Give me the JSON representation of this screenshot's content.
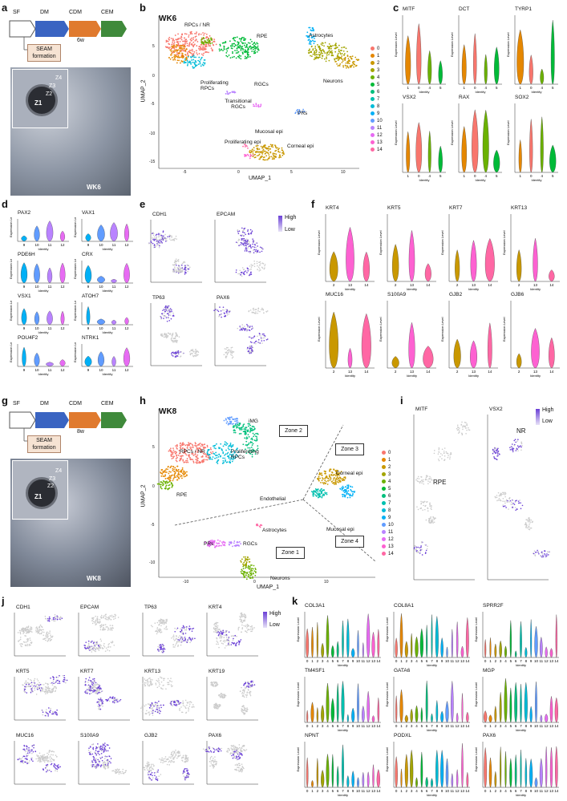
{
  "panels": {
    "a": {
      "label": "a",
      "timeline": [
        "SF",
        "DM",
        "CDM",
        "CEM"
      ],
      "duration": "6w",
      "box": "SEAM formation",
      "zones": [
        "Z1",
        "Z2",
        "Z3",
        "Z4"
      ],
      "photo_label": "WK6"
    },
    "b": {
      "label": "b",
      "title": "WK6",
      "xlabel": "UMAP_1",
      "ylabel": "UMAP_2",
      "xticks": [
        "-5",
        "0",
        "5",
        "10"
      ],
      "yticks": [
        "5",
        "0",
        "-5",
        "-10",
        "-15"
      ],
      "annotations": [
        "RPCs / NR",
        "RPE",
        "Astrocytes",
        "Proliferating RPCs",
        "Neurons",
        "RGCs",
        "Transitional RGCs",
        "PRs",
        "Mucosal epi",
        "Proliferating epi",
        "Corneal epi"
      ],
      "legend": [
        "0",
        "1",
        "2",
        "3",
        "4",
        "5",
        "6",
        "7",
        "8",
        "9",
        "10",
        "11",
        "12",
        "13",
        "14"
      ]
    },
    "c": {
      "label": "c",
      "genes": [
        "MITF",
        "DCT",
        "TYRP1",
        "VSX2",
        "RAX",
        "SOX2"
      ],
      "ylabel": "Expression Level",
      "xlabel": "Identity",
      "xticks": [
        "1",
        "0",
        "4",
        "5"
      ]
    },
    "d": {
      "label": "d",
      "genes": [
        "PAX2",
        "VAX1",
        "PDE6H",
        "CRX",
        "VSX1",
        "ATOH7",
        "POU4F2",
        "NTRK1"
      ],
      "ylabel": "Expression Level",
      "xlabel": "Identity",
      "xticks": [
        "9",
        "10",
        "11",
        "12"
      ]
    },
    "e": {
      "label": "e",
      "genes": [
        "CDH1",
        "EPCAM",
        "TP63",
        "PAX6"
      ],
      "high": "High",
      "low": "Low",
      "xlabel": "UMAP_1",
      "ylabel": "UMAP_2"
    },
    "f": {
      "label": "f",
      "genes": [
        "KRT4",
        "KRT5",
        "KRT7",
        "KRT13",
        "MUC16",
        "S100A9",
        "GJB2",
        "GJB6"
      ],
      "ylabel": "Expression Level",
      "xlabel": "Identity",
      "xticks": [
        "2",
        "13",
        "14"
      ]
    },
    "g": {
      "label": "g",
      "timeline": [
        "SF",
        "DM",
        "CDM",
        "CEM"
      ],
      "duration": "8w",
      "box": "SEAM formation",
      "zones": [
        "Z1",
        "Z2",
        "Z3",
        "Z4"
      ],
      "photo_label": "WK8"
    },
    "h": {
      "label": "h",
      "title": "WK8",
      "xlabel": "UMAP_1",
      "ylabel": "UMAP_2",
      "xticks": [
        "-10",
        "0",
        "10"
      ],
      "yticks": [
        "5",
        "0",
        "-5",
        "-10"
      ],
      "annotations": [
        "iMG",
        "RPCs / NR",
        "Proliferating RPCs",
        "RPE",
        "Endothelial",
        "Astrocytes",
        "PRs",
        "RGCs",
        "Neurons",
        "Corneal epi",
        "Mucosal epi"
      ],
      "zones": [
        "Zone 1",
        "Zone 2",
        "Zone 3",
        "Zone 4"
      ],
      "legend": [
        "0",
        "1",
        "2",
        "3",
        "4",
        "5",
        "6",
        "7",
        "8",
        "9",
        "10",
        "11",
        "12",
        "13",
        "14"
      ]
    },
    "i": {
      "label": "i",
      "genes": [
        "MITF",
        "VSX2"
      ],
      "annots": [
        "RPE",
        "NR"
      ],
      "high": "High",
      "low": "Low",
      "xlabel": "UMAP_1",
      "ylabel": "UMAP_2"
    },
    "j": {
      "label": "j",
      "genes": [
        "CDH1",
        "EPCAM",
        "TP63",
        "KRT4",
        "KRT5",
        "KRT7",
        "KRT13",
        "KRT19",
        "MUC16",
        "S100A9",
        "GJB2",
        "PAX6"
      ],
      "high": "High",
      "low": "Low",
      "xlabel": "UMAP_1",
      "ylabel": "UMAP_2"
    },
    "k": {
      "label": "k",
      "genes": [
        "COL3A1",
        "COL8A1",
        "SPRR2F",
        "TM4SF1",
        "GATA6",
        "MGP",
        "NPNT",
        "PODXL",
        "PAX6"
      ],
      "ylabel": "Expression Level",
      "xlabel": "Identity",
      "xticks": "0 1 2 3 4 5 6 7 8 9 10 11 12 13 14"
    }
  },
  "colors": {
    "c0": "#F8766D",
    "c1": "#E58700",
    "c2": "#C99800",
    "c3": "#A3A500",
    "c4": "#6BB100",
    "c5": "#00BA38",
    "c6": "#00BF7D",
    "c7": "#00C0AF",
    "c8": "#00BCD8",
    "c9": "#00B0F6",
    "c10": "#619CFF",
    "c11": "#B983FF",
    "c12": "#E76BF3",
    "c13": "#FD61D1",
    "c14": "#FF67A4",
    "feature_high": "#6a3fd6",
    "feature_low": "#cccccc"
  }
}
